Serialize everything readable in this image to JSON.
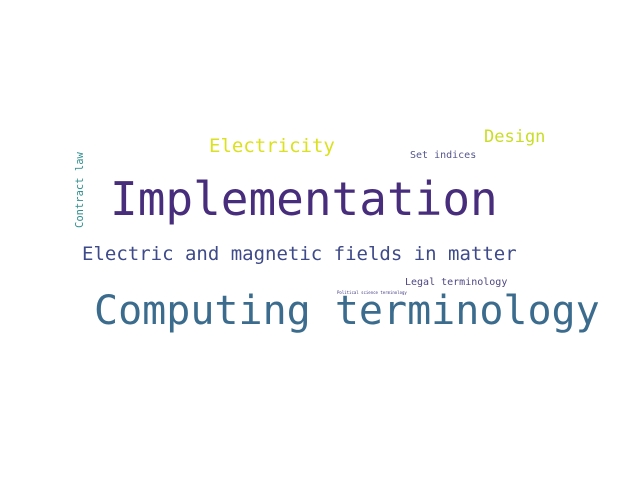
{
  "words": [
    {
      "text": "Implementation",
      "color": "#472d7b"
    },
    {
      "text": "Computing terminology",
      "color": "#3b6c8e"
    },
    {
      "text": "Electric and magnetic fields in matter",
      "color": "#3e4a89"
    },
    {
      "text": "Electricity",
      "color": "#dbe11f"
    },
    {
      "text": "Design",
      "color": "#c9dd25"
    },
    {
      "text": "Set indices",
      "color": "#54558c"
    },
    {
      "text": "Legal terminology",
      "color": "#4e4783"
    },
    {
      "text": "Political science terminology",
      "color": "#3d3580"
    },
    {
      "text": "Contract law",
      "color": "#2f8f8e"
    }
  ]
}
